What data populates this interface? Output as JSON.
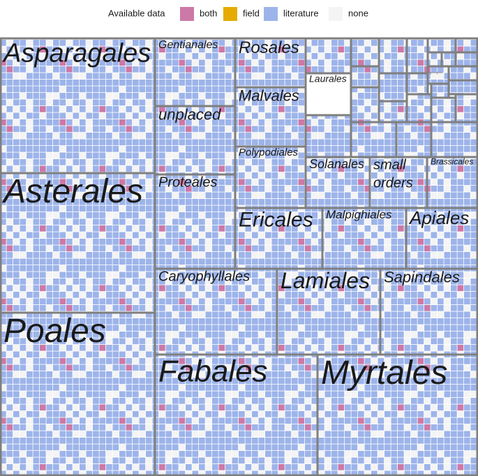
{
  "legend": {
    "title": "Available data",
    "items": [
      {
        "label": "both",
        "color": "#cc79a7"
      },
      {
        "label": "field",
        "color": "#e6ab02"
      },
      {
        "label": "literature",
        "color": "#9db4ea"
      },
      {
        "label": "none",
        "color": "#f4f4f4"
      }
    ]
  },
  "groups": [
    {
      "label": "Asparagales"
    },
    {
      "label": "Asterales"
    },
    {
      "label": "Poales"
    },
    {
      "label": "Gentianales"
    },
    {
      "label": "unplaced"
    },
    {
      "label": "Proteales"
    },
    {
      "label": "Rosales"
    },
    {
      "label": "Malvales"
    },
    {
      "label": "Polypodiales"
    },
    {
      "label": "Laurales"
    },
    {
      "label": "Solanales"
    },
    {
      "label": "small orders"
    },
    {
      "label": "Brassicales"
    },
    {
      "label": "Ericales"
    },
    {
      "label": "Malpighiales"
    },
    {
      "label": "Apiales"
    },
    {
      "label": "Caryophyllales"
    },
    {
      "label": "Lamiales"
    },
    {
      "label": "Sapindales"
    },
    {
      "label": "Fabales"
    },
    {
      "label": "Myrtales"
    }
  ]
}
